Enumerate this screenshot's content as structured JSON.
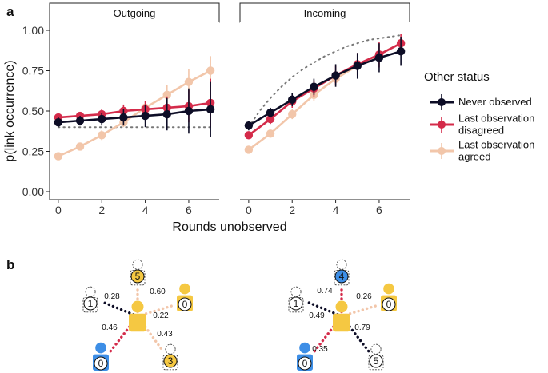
{
  "panel_letters": [
    "a",
    "b"
  ],
  "chart_data": {
    "type": "line",
    "ylabel": "p(link occurrence)",
    "xlabel": "Rounds unobserved",
    "ylim": [
      0,
      1
    ],
    "xlim": [
      -0.4,
      7.4
    ],
    "y_ticks": [
      "0.00",
      "0.25",
      "0.50",
      "0.75",
      "1.00"
    ],
    "x_ticks": [
      "0",
      "2",
      "4",
      "6"
    ],
    "grid": false,
    "legend": {
      "title": "Other status",
      "placement": "right",
      "entries": [
        {
          "label_lines": [
            "Never observed"
          ],
          "color": "#0d0d26"
        },
        {
          "label_lines": [
            "Last observation",
            "disagreed"
          ],
          "color": "#d42b4a"
        },
        {
          "label_lines": [
            "Last observation",
            "agreed"
          ],
          "color": "#f2c6aa"
        }
      ]
    },
    "facets": [
      {
        "title": "Outgoing",
        "reference": {
          "x": [
            0,
            1,
            2,
            3,
            4,
            5,
            6,
            7
          ],
          "y": [
            0.4,
            0.4,
            0.4,
            0.4,
            0.4,
            0.4,
            0.4,
            0.4
          ]
        },
        "series": [
          {
            "x": [
              0,
              1,
              2,
              3,
              4,
              5,
              6,
              7
            ],
            "y": [
              0.22,
              0.28,
              0.35,
              0.43,
              0.52,
              0.6,
              0.68,
              0.75
            ],
            "lo": [
              0.2,
              0.26,
              0.32,
              0.4,
              0.48,
              0.54,
              0.61,
              0.66
            ],
            "hi": [
              0.24,
              0.3,
              0.38,
              0.46,
              0.56,
              0.66,
              0.76,
              0.84
            ]
          },
          {
            "x": [
              0,
              1,
              2,
              3,
              4,
              5,
              6,
              7
            ],
            "y": [
              0.46,
              0.47,
              0.48,
              0.5,
              0.51,
              0.52,
              0.53,
              0.55
            ],
            "lo": [
              0.44,
              0.45,
              0.45,
              0.46,
              0.46,
              0.45,
              0.43,
              0.4
            ],
            "hi": [
              0.48,
              0.49,
              0.51,
              0.54,
              0.56,
              0.59,
              0.63,
              0.7
            ]
          },
          {
            "x": [
              0,
              1,
              2,
              3,
              4,
              5,
              6,
              7
            ],
            "y": [
              0.43,
              0.44,
              0.45,
              0.46,
              0.47,
              0.48,
              0.5,
              0.51
            ],
            "lo": [
              0.4,
              0.41,
              0.41,
              0.41,
              0.4,
              0.38,
              0.36,
              0.34
            ],
            "hi": [
              0.46,
              0.47,
              0.49,
              0.51,
              0.54,
              0.58,
              0.64,
              0.68
            ]
          }
        ]
      },
      {
        "title": "Incoming",
        "reference": {
          "x": [
            0,
            0.5,
            1,
            1.5,
            2,
            2.5,
            3,
            3.5,
            4,
            4.5,
            5,
            5.5,
            6,
            6.5,
            7
          ],
          "y": [
            0.4,
            0.5,
            0.58,
            0.65,
            0.71,
            0.76,
            0.8,
            0.84,
            0.87,
            0.9,
            0.92,
            0.94,
            0.95,
            0.96,
            0.97
          ]
        },
        "series": [
          {
            "x": [
              0,
              1,
              2,
              3,
              4,
              5,
              6,
              7
            ],
            "y": [
              0.26,
              0.36,
              0.48,
              0.6,
              0.7,
              0.78,
              0.85,
              0.92
            ],
            "lo": [
              0.24,
              0.34,
              0.45,
              0.56,
              0.65,
              0.72,
              0.79,
              0.88
            ],
            "hi": [
              0.28,
              0.38,
              0.51,
              0.64,
              0.75,
              0.84,
              0.91,
              0.95
            ]
          },
          {
            "x": [
              0,
              1,
              2,
              3,
              4,
              5,
              6,
              7
            ],
            "y": [
              0.35,
              0.45,
              0.56,
              0.64,
              0.72,
              0.79,
              0.85,
              0.92
            ],
            "lo": [
              0.33,
              0.42,
              0.52,
              0.59,
              0.66,
              0.72,
              0.77,
              0.85
            ],
            "hi": [
              0.37,
              0.48,
              0.6,
              0.69,
              0.78,
              0.86,
              0.93,
              0.98
            ]
          },
          {
            "x": [
              0,
              1,
              2,
              3,
              4,
              5,
              6,
              7
            ],
            "y": [
              0.41,
              0.49,
              0.57,
              0.65,
              0.72,
              0.78,
              0.83,
              0.87
            ],
            "lo": [
              0.38,
              0.46,
              0.53,
              0.6,
              0.65,
              0.7,
              0.74,
              0.78
            ],
            "hi": [
              0.44,
              0.52,
              0.61,
              0.7,
              0.79,
              0.86,
              0.92,
              0.96
            ]
          }
        ]
      }
    ]
  },
  "diagram_b": {
    "colors": {
      "yellow": "#f5c842",
      "blue": "#3d8ee6",
      "black": "#0d0d26",
      "red": "#d42b4a",
      "peach": "#f2c6aa"
    },
    "networks": [
      {
        "edges": [
          {
            "label": "0.28",
            "color": "black"
          },
          {
            "label": "0.60",
            "color": "peach"
          },
          {
            "label": "0.22",
            "color": "peach"
          },
          {
            "label": "0.46",
            "color": "red"
          },
          {
            "label": "0.43",
            "color": "peach"
          }
        ],
        "nodes": [
          "1",
          "5",
          "0",
          "0",
          "3"
        ]
      },
      {
        "edges": [
          {
            "label": "0.49",
            "color": "black"
          },
          {
            "label": "0.74",
            "color": "red"
          },
          {
            "label": "0.26",
            "color": "peach"
          },
          {
            "label": "0.35",
            "color": "red"
          },
          {
            "label": "0.79",
            "color": "black"
          }
        ],
        "nodes": [
          "1",
          "4",
          "0",
          "0",
          "5"
        ]
      }
    ]
  }
}
